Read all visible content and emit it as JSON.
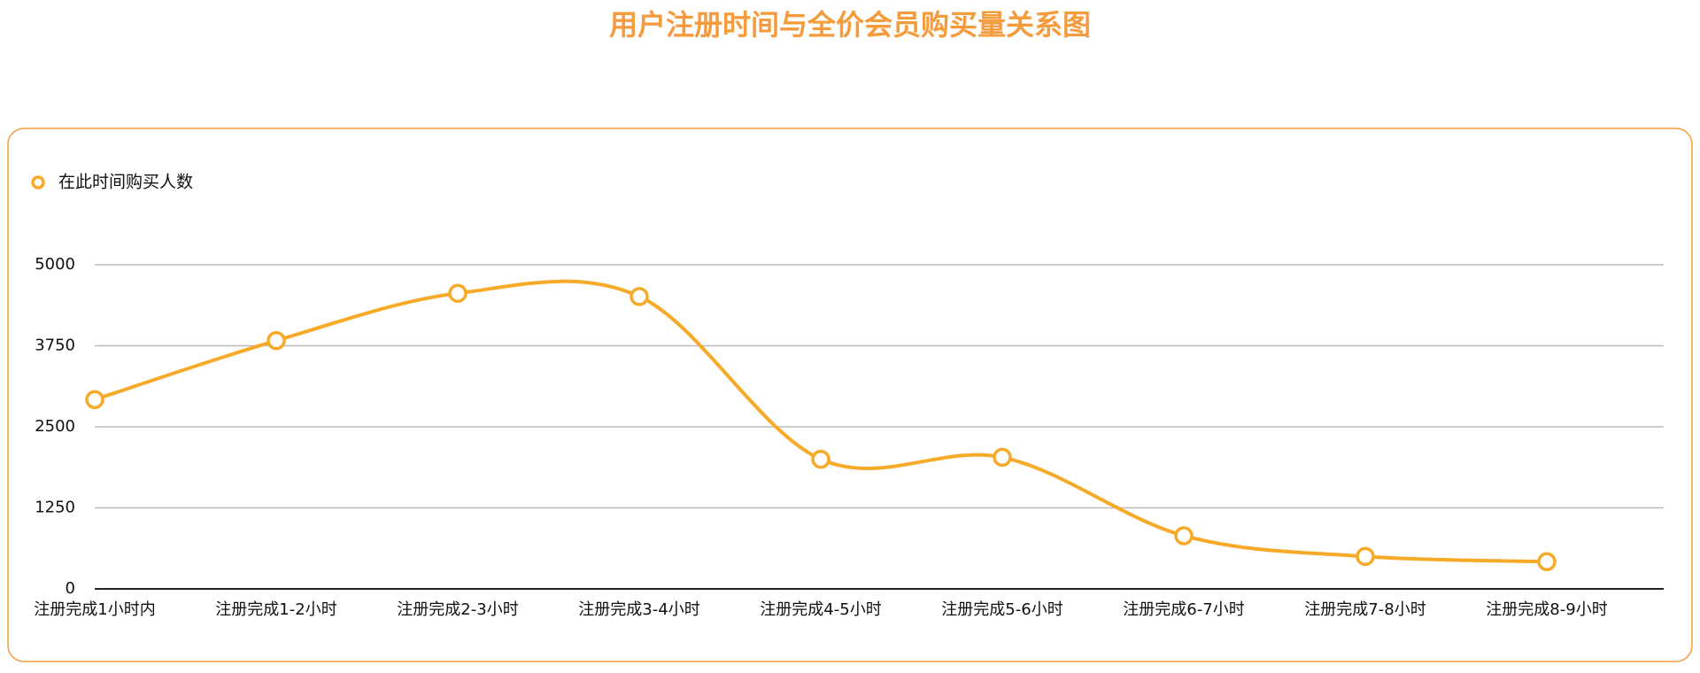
{
  "chart_data": {
    "type": "line",
    "title": "用户注册时间与全价会员购买量关系图",
    "categories": [
      "注册完成1小时内",
      "注册完成1-2小时",
      "注册完成2-3小时",
      "注册完成3-4小时",
      "注册完成4-5小时",
      "注册完成5-6小时",
      "注册完成6-7小时",
      "注册完成7-8小时",
      "注册完成8-9小时"
    ],
    "series": [
      {
        "name": "在此时间购买人数",
        "color": "#f7a928",
        "values": [
          2920,
          3830,
          4560,
          4510,
          2000,
          2030,
          820,
          500,
          420
        ]
      }
    ],
    "ylim": [
      0,
      5000
    ],
    "yticks": [
      0,
      1250,
      2500,
      3750,
      5000
    ],
    "grid": true,
    "smooth": true
  }
}
